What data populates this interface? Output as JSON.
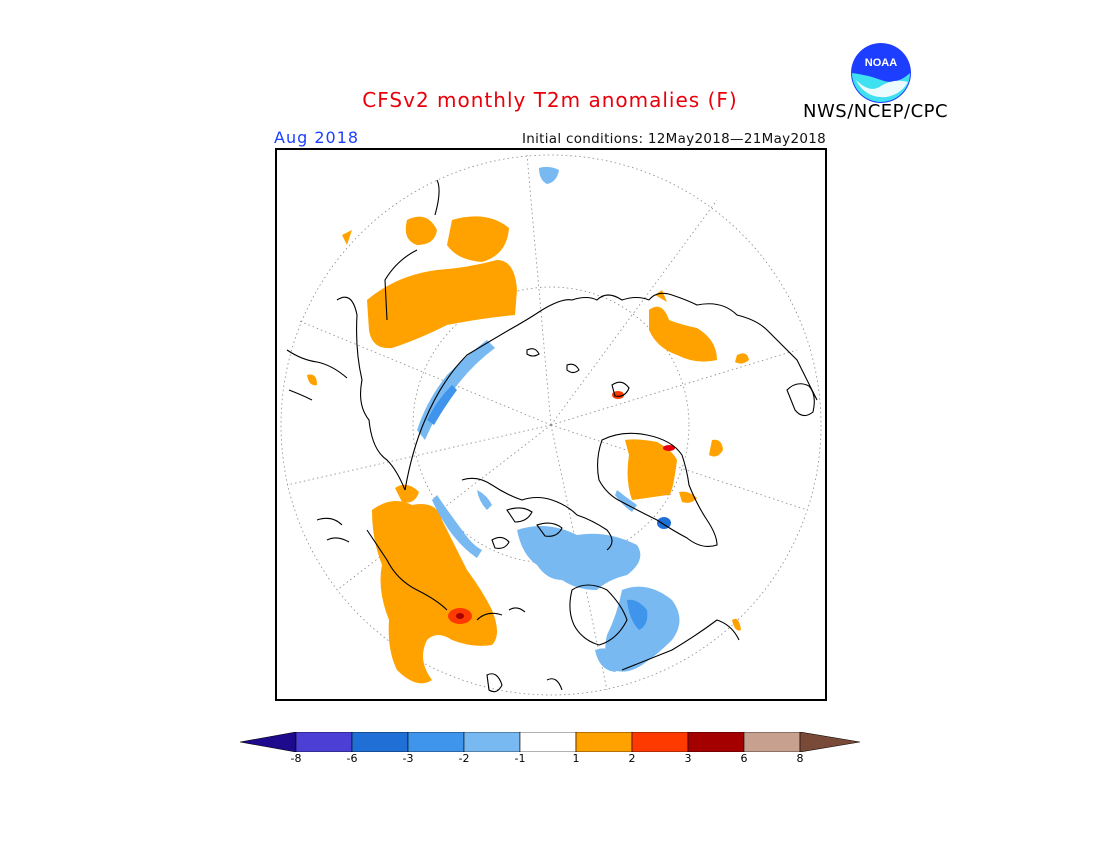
{
  "header": {
    "title": "CFSv2 monthly T2m anomalies (F)",
    "agency": "NWS/NCEP/CPC",
    "valid_month": "Aug 2018",
    "initial_conditions": "Initial conditions: 12May2018—21May2018"
  },
  "logo": {
    "text": "NOAA",
    "icon": "noaa-logo-icon"
  },
  "map": {
    "projection": "north-polar-stereographic",
    "gridlines": true
  },
  "colorbar": {
    "labels": [
      "-8",
      "-6",
      "-3",
      "-2",
      "-1",
      "1",
      "2",
      "3",
      "6",
      "8"
    ],
    "colors": [
      "#1e0a8c",
      "#4b3fd6",
      "#1f6fd6",
      "#3f94ec",
      "#78b9f2",
      "#ffffff",
      "#ffa200",
      "#ff3a00",
      "#a50000",
      "#c8a090",
      "#7a4a38"
    ]
  }
}
